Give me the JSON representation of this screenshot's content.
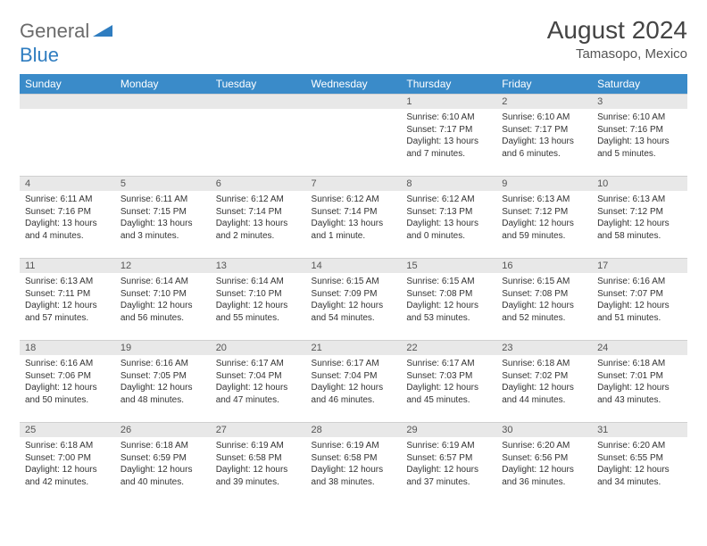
{
  "logo": {
    "general": "General",
    "blue": "Blue"
  },
  "title": "August 2024",
  "location": "Tamasopo, Mexico",
  "colors": {
    "header_bg": "#3a8bc9",
    "header_text": "#ffffff",
    "daynum_bg": "#e8e8e8",
    "text": "#333333",
    "logo_gray": "#6b6b6b",
    "logo_blue": "#2f7dc0"
  },
  "days_of_week": [
    "Sunday",
    "Monday",
    "Tuesday",
    "Wednesday",
    "Thursday",
    "Friday",
    "Saturday"
  ],
  "weeks": [
    [
      null,
      null,
      null,
      null,
      {
        "n": "1",
        "sunrise": "6:10 AM",
        "sunset": "7:17 PM",
        "daylight": "13 hours and 7 minutes."
      },
      {
        "n": "2",
        "sunrise": "6:10 AM",
        "sunset": "7:17 PM",
        "daylight": "13 hours and 6 minutes."
      },
      {
        "n": "3",
        "sunrise": "6:10 AM",
        "sunset": "7:16 PM",
        "daylight": "13 hours and 5 minutes."
      }
    ],
    [
      {
        "n": "4",
        "sunrise": "6:11 AM",
        "sunset": "7:16 PM",
        "daylight": "13 hours and 4 minutes."
      },
      {
        "n": "5",
        "sunrise": "6:11 AM",
        "sunset": "7:15 PM",
        "daylight": "13 hours and 3 minutes."
      },
      {
        "n": "6",
        "sunrise": "6:12 AM",
        "sunset": "7:14 PM",
        "daylight": "13 hours and 2 minutes."
      },
      {
        "n": "7",
        "sunrise": "6:12 AM",
        "sunset": "7:14 PM",
        "daylight": "13 hours and 1 minute."
      },
      {
        "n": "8",
        "sunrise": "6:12 AM",
        "sunset": "7:13 PM",
        "daylight": "13 hours and 0 minutes."
      },
      {
        "n": "9",
        "sunrise": "6:13 AM",
        "sunset": "7:12 PM",
        "daylight": "12 hours and 59 minutes."
      },
      {
        "n": "10",
        "sunrise": "6:13 AM",
        "sunset": "7:12 PM",
        "daylight": "12 hours and 58 minutes."
      }
    ],
    [
      {
        "n": "11",
        "sunrise": "6:13 AM",
        "sunset": "7:11 PM",
        "daylight": "12 hours and 57 minutes."
      },
      {
        "n": "12",
        "sunrise": "6:14 AM",
        "sunset": "7:10 PM",
        "daylight": "12 hours and 56 minutes."
      },
      {
        "n": "13",
        "sunrise": "6:14 AM",
        "sunset": "7:10 PM",
        "daylight": "12 hours and 55 minutes."
      },
      {
        "n": "14",
        "sunrise": "6:15 AM",
        "sunset": "7:09 PM",
        "daylight": "12 hours and 54 minutes."
      },
      {
        "n": "15",
        "sunrise": "6:15 AM",
        "sunset": "7:08 PM",
        "daylight": "12 hours and 53 minutes."
      },
      {
        "n": "16",
        "sunrise": "6:15 AM",
        "sunset": "7:08 PM",
        "daylight": "12 hours and 52 minutes."
      },
      {
        "n": "17",
        "sunrise": "6:16 AM",
        "sunset": "7:07 PM",
        "daylight": "12 hours and 51 minutes."
      }
    ],
    [
      {
        "n": "18",
        "sunrise": "6:16 AM",
        "sunset": "7:06 PM",
        "daylight": "12 hours and 50 minutes."
      },
      {
        "n": "19",
        "sunrise": "6:16 AM",
        "sunset": "7:05 PM",
        "daylight": "12 hours and 48 minutes."
      },
      {
        "n": "20",
        "sunrise": "6:17 AM",
        "sunset": "7:04 PM",
        "daylight": "12 hours and 47 minutes."
      },
      {
        "n": "21",
        "sunrise": "6:17 AM",
        "sunset": "7:04 PM",
        "daylight": "12 hours and 46 minutes."
      },
      {
        "n": "22",
        "sunrise": "6:17 AM",
        "sunset": "7:03 PM",
        "daylight": "12 hours and 45 minutes."
      },
      {
        "n": "23",
        "sunrise": "6:18 AM",
        "sunset": "7:02 PM",
        "daylight": "12 hours and 44 minutes."
      },
      {
        "n": "24",
        "sunrise": "6:18 AM",
        "sunset": "7:01 PM",
        "daylight": "12 hours and 43 minutes."
      }
    ],
    [
      {
        "n": "25",
        "sunrise": "6:18 AM",
        "sunset": "7:00 PM",
        "daylight": "12 hours and 42 minutes."
      },
      {
        "n": "26",
        "sunrise": "6:18 AM",
        "sunset": "6:59 PM",
        "daylight": "12 hours and 40 minutes."
      },
      {
        "n": "27",
        "sunrise": "6:19 AM",
        "sunset": "6:58 PM",
        "daylight": "12 hours and 39 minutes."
      },
      {
        "n": "28",
        "sunrise": "6:19 AM",
        "sunset": "6:58 PM",
        "daylight": "12 hours and 38 minutes."
      },
      {
        "n": "29",
        "sunrise": "6:19 AM",
        "sunset": "6:57 PM",
        "daylight": "12 hours and 37 minutes."
      },
      {
        "n": "30",
        "sunrise": "6:20 AM",
        "sunset": "6:56 PM",
        "daylight": "12 hours and 36 minutes."
      },
      {
        "n": "31",
        "sunrise": "6:20 AM",
        "sunset": "6:55 PM",
        "daylight": "12 hours and 34 minutes."
      }
    ]
  ],
  "labels": {
    "sunrise": "Sunrise:",
    "sunset": "Sunset:",
    "daylight": "Daylight:"
  }
}
